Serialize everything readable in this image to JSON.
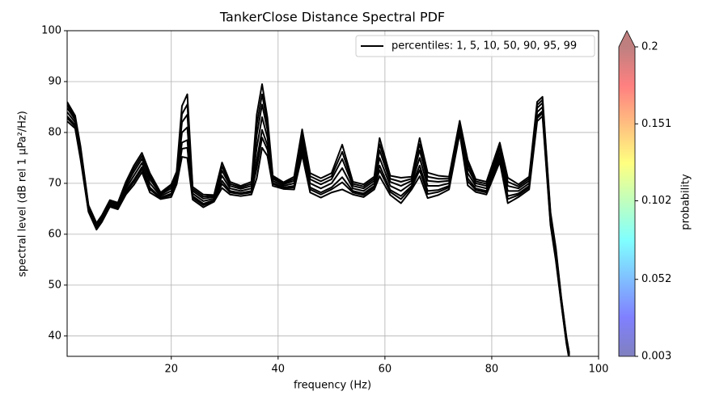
{
  "chart_data": {
    "type": "line",
    "title": "TankerClose Distance Spectral PDF",
    "xlabel": "frequency (Hz)",
    "ylabel": "spectral level (dB rel 1 µPa²/Hz)",
    "x": [
      0.5,
      2,
      3,
      4.5,
      6,
      7,
      8.5,
      10,
      11.5,
      13,
      14.5,
      16,
      18,
      20,
      21,
      22,
      23,
      24,
      26,
      28,
      29.5,
      31,
      33,
      35,
      36,
      37,
      38,
      39,
      41,
      43,
      44.5,
      46,
      48,
      50,
      52,
      54,
      56,
      58,
      59,
      61,
      63,
      65,
      66.5,
      68,
      70,
      72,
      74,
      75.5,
      77,
      79,
      81.5,
      83,
      85,
      87,
      88.5,
      89.5,
      91,
      92,
      93,
      94,
      94.5
    ],
    "color": "#000000",
    "legend": {
      "label": "percentiles: 1, 5, 10, 50, 90, 95, 99",
      "loc": "upper right"
    },
    "series": [
      {
        "values": [
          82.2,
          80.8,
          74.8,
          64.4,
          60.9,
          62.4,
          65.4,
          64.9,
          67.8,
          69.7,
          72.2,
          68.2,
          66.9,
          67.3,
          69.8,
          75.2,
          75,
          66.8,
          65.3,
          66.4,
          69.1,
          67.8,
          67.5,
          67.8,
          71,
          77,
          75.4,
          69.5,
          68.9,
          68.8,
          75.6,
          68.2,
          67.2,
          68.2,
          68.8,
          67.8,
          67.3,
          68.8,
          71.4,
          67.7,
          66.1,
          68.8,
          71.4,
          67.1,
          67.7,
          68.8,
          79.8,
          69.6,
          68.3,
          67.8,
          74.2,
          66.1,
          67.3,
          68.8,
          82.2,
          83.2,
          61.8,
          54.8,
          46.4,
          38.4,
          35.4
        ]
      },
      {
        "values": [
          82.8,
          81.2,
          75.2,
          64.6,
          61.1,
          62.6,
          65.6,
          65.1,
          68.2,
          70.3,
          72.8,
          68.8,
          67.1,
          67.7,
          70.2,
          76.8,
          77,
          67.2,
          65.7,
          66.6,
          69.9,
          68.2,
          67.9,
          68.2,
          73,
          79,
          76.6,
          69.9,
          69.1,
          69.2,
          76.4,
          68.8,
          67.8,
          68.8,
          70.2,
          68.2,
          67.7,
          69.2,
          72.6,
          68.3,
          66.9,
          69.2,
          72.6,
          67.9,
          68.3,
          69.2,
          80.2,
          70.4,
          68.7,
          68.2,
          74.8,
          66.9,
          67.7,
          69.2,
          82.8,
          83.8,
          62.2,
          55.2,
          46.6,
          38.6,
          35.6
        ]
      },
      {
        "values": [
          83.2,
          81.5,
          75.5,
          64.7,
          61.2,
          62.7,
          65.7,
          65.2,
          68.5,
          70.7,
          73.2,
          69.2,
          67.2,
          68,
          70.5,
          78,
          78.5,
          67.5,
          66,
          66.7,
          70.5,
          68.5,
          68.1,
          68.5,
          74.5,
          80.5,
          77.5,
          70.1,
          69.2,
          69.5,
          77,
          69.2,
          68.2,
          69.2,
          71.2,
          68.5,
          68,
          69.5,
          73.5,
          68.7,
          67.5,
          69.5,
          73.5,
          68.5,
          68.7,
          69.5,
          80.5,
          71,
          69,
          68.5,
          75.2,
          67.5,
          68,
          69.5,
          83.2,
          84.2,
          62.5,
          55.5,
          46.7,
          38.7,
          35.7
        ]
      },
      {
        "values": [
          84,
          82,
          76,
          65,
          61.5,
          63,
          66,
          65.5,
          69,
          71.5,
          74,
          70,
          67.5,
          68.5,
          71,
          80,
          81,
          68,
          66.5,
          67,
          71.5,
          69,
          68.5,
          69,
          77,
          83,
          79,
          70.5,
          69.5,
          70,
          78,
          70,
          69,
          70,
          73,
          69,
          68.5,
          70,
          75,
          69.5,
          68.5,
          70,
          75,
          69.5,
          69.5,
          70,
          81,
          72,
          69.5,
          69,
          76,
          68.5,
          68.5,
          70,
          84,
          85,
          63,
          56,
          47,
          39,
          36
        ]
      },
      {
        "values": [
          84.8,
          82.5,
          76.5,
          65.3,
          61.8,
          63.3,
          66.3,
          65.8,
          69.5,
          72.3,
          74.8,
          70.8,
          67.8,
          69,
          71.5,
          82,
          83.5,
          68.5,
          67,
          67.3,
          72.5,
          69.5,
          68.9,
          69.5,
          79.5,
          85.5,
          80.5,
          70.9,
          69.8,
          70.5,
          79,
          70.8,
          69.8,
          70.8,
          74.8,
          69.5,
          69,
          70.5,
          76.5,
          70.3,
          69.5,
          70.5,
          76.5,
          70.5,
          70.3,
          70.5,
          81.5,
          73,
          70,
          69.5,
          76.8,
          69.5,
          69,
          70.5,
          84.8,
          85.8,
          63.5,
          56.5,
          47.3,
          39.3,
          36.3
        ]
      },
      {
        "values": [
          85.4,
          82.9,
          76.9,
          65.5,
          62,
          63.5,
          66.5,
          66,
          69.9,
          72.9,
          75.4,
          71.4,
          68,
          69.4,
          71.9,
          83.6,
          85.5,
          68.9,
          67.4,
          67.5,
          73.3,
          69.9,
          69.2,
          69.9,
          81.5,
          87.5,
          81.7,
          71.2,
          70,
          70.9,
          79.8,
          71.4,
          70.4,
          71.4,
          76.2,
          69.9,
          69.4,
          70.9,
          77.7,
          70.9,
          70.3,
          70.9,
          77.7,
          71.3,
          70.9,
          70.9,
          81.9,
          73.8,
          70.4,
          69.9,
          77.4,
          70.3,
          69.4,
          70.9,
          85.4,
          86.4,
          63.9,
          56.9,
          47.5,
          39.5,
          36.5
        ]
      },
      {
        "values": [
          86,
          83.3,
          77.3,
          65.7,
          62.2,
          63.7,
          66.7,
          66.2,
          70.3,
          73.5,
          76,
          72,
          68.2,
          69.8,
          72.3,
          85.2,
          87.5,
          69.3,
          67.8,
          67.7,
          74.1,
          70.3,
          69.5,
          70.3,
          83.5,
          89.5,
          82.9,
          71.5,
          70.2,
          71.3,
          80.6,
          72,
          71,
          72,
          77.6,
          70.3,
          69.8,
          71.3,
          78.9,
          71.5,
          71.1,
          71.3,
          78.9,
          72.1,
          71.5,
          71.3,
          82.3,
          74.6,
          70.8,
          70.3,
          78,
          71.1,
          69.8,
          71.3,
          86,
          87,
          64.3,
          57.3,
          47.7,
          39.7,
          36.7
        ]
      }
    ],
    "xlim": [
      0.5,
      100
    ],
    "xticks": [
      20,
      40,
      60,
      80,
      100
    ],
    "ylim": [
      36,
      100
    ],
    "yticks": [
      40,
      50,
      60,
      70,
      80,
      90,
      100
    ],
    "grid": true,
    "colorbar": {
      "label": "probability",
      "colormap": "jet",
      "alpha": 0.5,
      "lim": [
        0.003,
        0.2
      ],
      "ticks": [
        0.003,
        0.052,
        0.102,
        0.151,
        0.2
      ],
      "extend": "max"
    }
  }
}
